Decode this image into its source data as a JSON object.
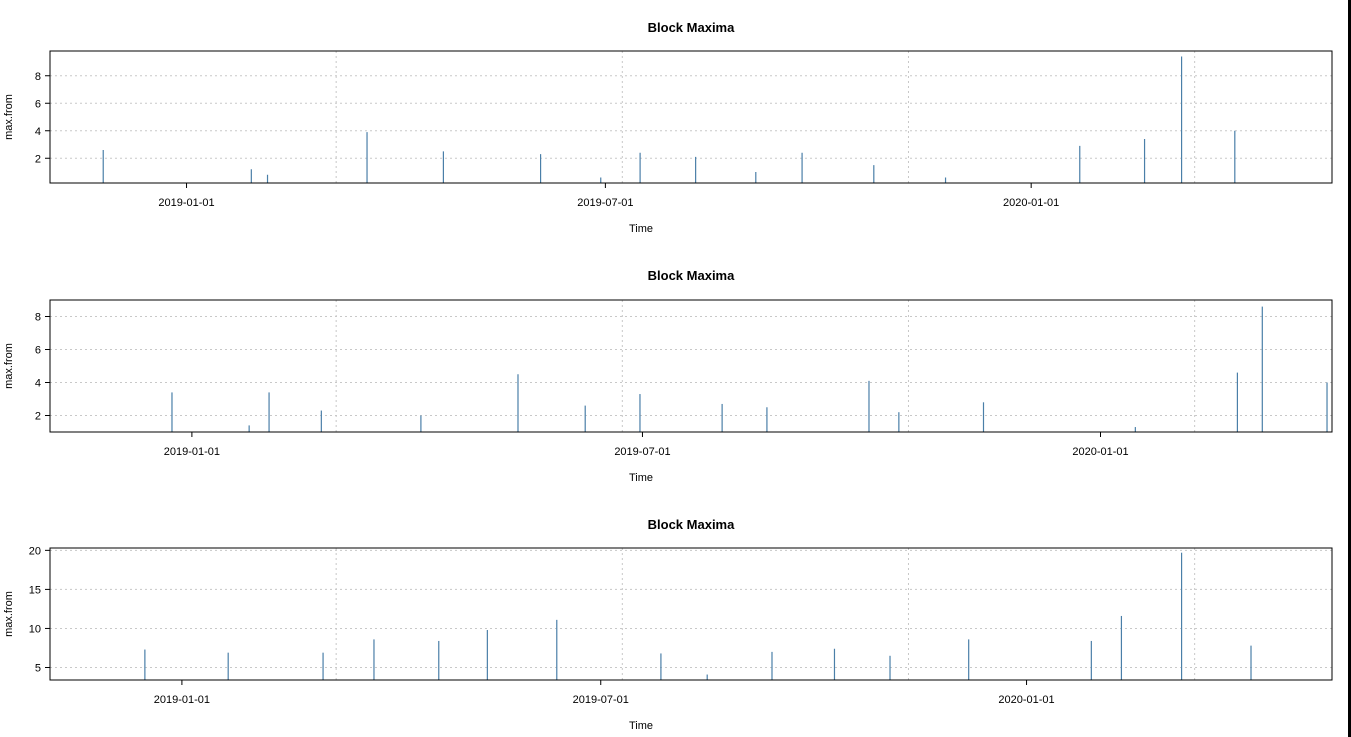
{
  "chart_data": [
    {
      "type": "bar",
      "title": "Block Maxima",
      "xlabel": "Time",
      "ylabel": "max.from",
      "x_ticks": [
        "2019-01-01",
        "2019-07-01",
        "2020-01-01"
      ],
      "y_ticks": [
        2,
        4,
        6,
        8
      ],
      "xlim": [
        "2018-11-03",
        "2020-05-10"
      ],
      "ylim": [
        0.2,
        9.8
      ],
      "grid": true,
      "series_color": "#4a7fa8",
      "x": [
        "2018-11-26",
        "2019-01-29",
        "2019-02-05",
        "2019-03-20",
        "2019-04-22",
        "2019-06-03",
        "2019-06-29",
        "2019-07-16",
        "2019-08-09",
        "2019-09-04",
        "2019-09-24",
        "2019-10-25",
        "2019-11-25",
        "2020-01-22",
        "2020-02-19",
        "2020-03-06",
        "2020-03-29"
      ],
      "values": [
        2.6,
        1.2,
        0.8,
        3.9,
        2.5,
        2.3,
        0.6,
        2.4,
        2.1,
        1.0,
        2.4,
        1.5,
        0.6,
        2.9,
        3.4,
        9.4,
        4.0
      ]
    },
    {
      "type": "bar",
      "title": "Block Maxima",
      "xlabel": "Time",
      "ylabel": "max.from",
      "x_ticks": [
        "2019-01-01",
        "2019-07-01",
        "2020-01-01"
      ],
      "y_ticks": [
        2,
        4,
        6,
        8
      ],
      "xlim": [
        "2018-11-05",
        "2020-04-03"
      ],
      "ylim": [
        1.0,
        9.0
      ],
      "grid": true,
      "series_color": "#4a7fa8",
      "x": [
        "2018-12-24",
        "2019-01-24",
        "2019-02-01",
        "2019-02-22",
        "2019-04-03",
        "2019-05-12",
        "2019-06-08",
        "2019-06-30",
        "2019-08-02",
        "2019-08-20",
        "2019-09-30",
        "2019-10-12",
        "2019-11-15",
        "2020-01-15",
        "2020-02-25",
        "2020-03-06",
        "2020-04-01"
      ],
      "values": [
        3.4,
        1.4,
        3.4,
        2.3,
        2.0,
        4.5,
        2.6,
        3.3,
        2.7,
        2.5,
        4.1,
        2.2,
        2.8,
        1.3,
        4.6,
        8.6,
        4.0
      ]
    },
    {
      "type": "bar",
      "title": "Block Maxima",
      "xlabel": "Time",
      "ylabel": "max.from",
      "x_ticks": [
        "2019-01-01",
        "2019-07-01",
        "2020-01-01"
      ],
      "y_ticks": [
        5,
        10,
        15,
        20
      ],
      "xlim": [
        "2018-11-05",
        "2020-05-12"
      ],
      "ylim": [
        3.4,
        20.3
      ],
      "grid": true,
      "series_color": "#4a7fa8",
      "x": [
        "2018-12-16",
        "2019-01-21",
        "2019-03-03",
        "2019-03-25",
        "2019-04-22",
        "2019-05-13",
        "2019-06-12",
        "2019-07-27",
        "2019-08-16",
        "2019-09-13",
        "2019-10-10",
        "2019-11-03",
        "2019-12-07",
        "2020-01-29",
        "2020-02-11",
        "2020-03-08",
        "2020-04-07"
      ],
      "values": [
        7.3,
        6.9,
        6.9,
        8.6,
        8.4,
        9.8,
        11.1,
        6.8,
        4.1,
        7.0,
        7.4,
        6.5,
        8.6,
        8.4,
        11.6,
        19.7,
        7.8
      ]
    }
  ]
}
